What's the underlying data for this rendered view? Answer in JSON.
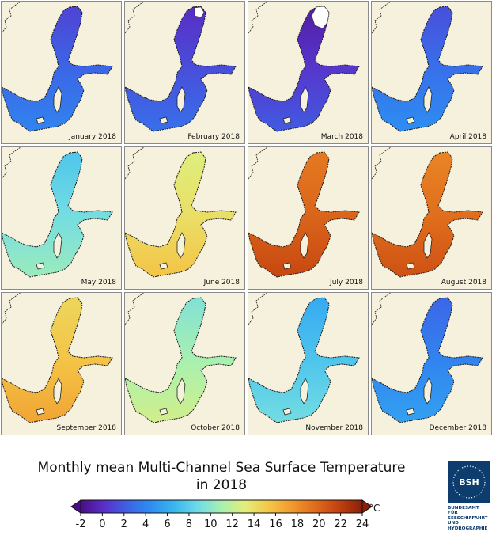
{
  "panels": [
    {
      "month": "January 2018",
      "temp": 2.5
    },
    {
      "month": "February 2018",
      "temp": 1.5
    },
    {
      "month": "March 2018",
      "temp": 0.5
    },
    {
      "month": "April 2018",
      "temp": 3.0
    },
    {
      "month": "May 2018",
      "temp": 9.0
    },
    {
      "month": "June 2018",
      "temp": 14.0
    },
    {
      "month": "July 2018",
      "temp": 20.0
    },
    {
      "month": "August 2018",
      "temp": 19.5
    },
    {
      "month": "September 2018",
      "temp": 15.5
    },
    {
      "month": "October 2018",
      "temp": 11.0
    },
    {
      "month": "November 2018",
      "temp": 7.5
    },
    {
      "month": "December 2018",
      "temp": 4.0
    }
  ],
  "title_line1": "Monthly mean Multi-Channel Sea Surface Temperature",
  "title_line2": "in 2018",
  "legend": {
    "min": -2,
    "max": 24,
    "ticks": [
      -2,
      0,
      2,
      4,
      6,
      8,
      10,
      12,
      14,
      16,
      18,
      20,
      22,
      24
    ],
    "unit": "°C",
    "colors": [
      "#4b0d86",
      "#5a2fc9",
      "#3d63e6",
      "#2d8ef2",
      "#3ab7f0",
      "#6fdbe6",
      "#a8f0b0",
      "#e3ee79",
      "#f4c748",
      "#f09a2e",
      "#e06b1c",
      "#c2410f",
      "#8c1f0a"
    ]
  },
  "logo": {
    "mark": "BSH",
    "lines": [
      "BUNDESAMT FÜR",
      "SEESCHIFFAHRT",
      "UND",
      "HYDROGRAPHIE"
    ]
  }
}
